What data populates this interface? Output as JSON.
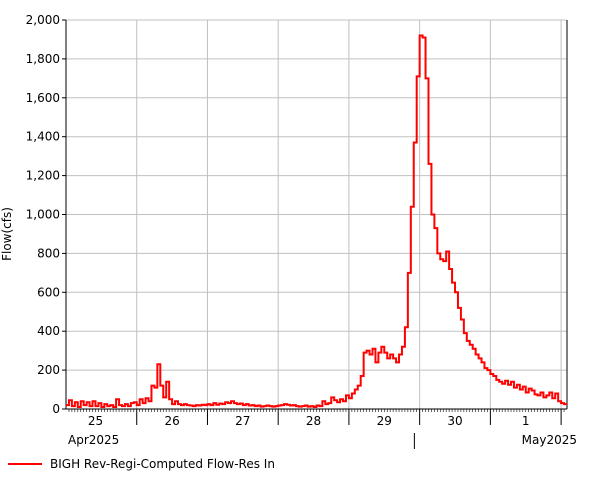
{
  "chart_data": {
    "type": "line",
    "ylabel": "Flow(cfs)",
    "xlabel": "",
    "ylim": [
      0,
      2000
    ],
    "yticks": [
      0,
      200,
      400,
      600,
      800,
      1000,
      1200,
      1400,
      1600,
      1800,
      2000
    ],
    "ytick_labels": [
      "0",
      "200",
      "400",
      "600",
      "800",
      "1,000",
      "1,200",
      "1,400",
      "1,600",
      "1,800",
      "2,000"
    ],
    "day_labels": [
      "25",
      "26",
      "27",
      "28",
      "29",
      "30",
      "1"
    ],
    "month_labels": [
      "Apr2025",
      "May2025"
    ],
    "grid": true,
    "legend_position": "bottom-left",
    "colors": {
      "series": "#ff0000",
      "grid": "#c0c0c0",
      "axis": "#000000"
    },
    "series": [
      {
        "name": "BIGH Rev-Regi-Computed Flow-Res In",
        "x_start_day": 25,
        "step_hours": 1,
        "values": [
          20,
          45,
          15,
          35,
          10,
          40,
          20,
          35,
          15,
          40,
          15,
          30,
          10,
          25,
          15,
          20,
          10,
          50,
          20,
          15,
          25,
          15,
          30,
          35,
          20,
          50,
          30,
          55,
          40,
          120,
          110,
          230,
          120,
          60,
          140,
          50,
          25,
          40,
          25,
          20,
          25,
          20,
          18,
          15,
          20,
          18,
          22,
          20,
          25,
          20,
          30,
          22,
          28,
          25,
          35,
          30,
          40,
          30,
          25,
          28,
          20,
          25,
          18,
          20,
          15,
          18,
          12,
          15,
          18,
          15,
          12,
          15,
          18,
          20,
          25,
          22,
          18,
          20,
          15,
          12,
          15,
          18,
          12,
          15,
          10,
          18,
          15,
          40,
          25,
          30,
          60,
          45,
          35,
          50,
          40,
          70,
          55,
          80,
          100,
          120,
          170,
          290,
          300,
          280,
          310,
          240,
          290,
          320,
          290,
          260,
          280,
          260,
          240,
          280,
          320,
          420,
          700,
          1040,
          1370,
          1710,
          1920,
          1910,
          1700,
          1260,
          1000,
          930,
          800,
          770,
          760,
          810,
          720,
          650,
          600,
          520,
          460,
          390,
          350,
          330,
          310,
          280,
          260,
          240,
          210,
          200,
          180,
          170,
          150,
          140,
          130,
          145,
          125,
          140,
          110,
          125,
          100,
          115,
          85,
          105,
          95,
          75,
          70,
          85,
          60,
          70,
          85,
          55,
          80,
          40,
          30,
          25
        ]
      }
    ]
  }
}
